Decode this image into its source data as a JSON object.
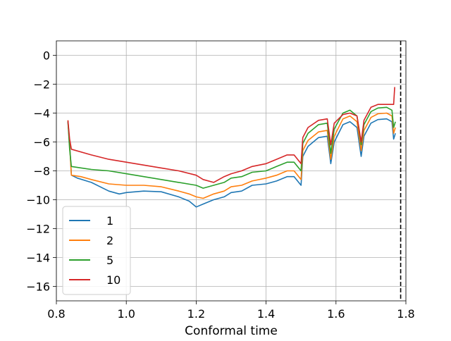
{
  "chart_data": {
    "type": "line",
    "title": "",
    "xlabel": "Conformal time",
    "ylabel": "",
    "xlim": [
      0.8,
      1.8
    ],
    "ylim": [
      -17,
      1
    ],
    "x_ticks": [
      0.8,
      1.0,
      1.2,
      1.4,
      1.6,
      1.8
    ],
    "x_tick_labels": [
      "0.8",
      "1.0",
      "1.2",
      "1.4",
      "1.6",
      "1.8"
    ],
    "y_ticks": [
      0,
      -2,
      -4,
      -6,
      -8,
      -10,
      -12,
      -14,
      -16
    ],
    "y_tick_labels": [
      "0",
      "−2",
      "−4",
      "−6",
      "−8",
      "−10",
      "−12",
      "−14",
      "−16"
    ],
    "grid": true,
    "legend_position": "lower-left",
    "vertical_line": {
      "x": 1.785,
      "style": "dashed",
      "color": "#000000"
    },
    "series": [
      {
        "name": "1",
        "color": "#1f77b4",
        "points": [
          [
            0.833,
            -4.6
          ],
          [
            0.838,
            -6.0
          ],
          [
            0.843,
            -8.3
          ],
          [
            0.86,
            -8.5
          ],
          [
            0.9,
            -8.8
          ],
          [
            0.95,
            -9.4
          ],
          [
            0.98,
            -9.6
          ],
          [
            1.0,
            -9.5
          ],
          [
            1.05,
            -9.4
          ],
          [
            1.1,
            -9.45
          ],
          [
            1.15,
            -9.8
          ],
          [
            1.18,
            -10.1
          ],
          [
            1.2,
            -10.5
          ],
          [
            1.22,
            -10.3
          ],
          [
            1.25,
            -10.0
          ],
          [
            1.28,
            -9.8
          ],
          [
            1.3,
            -9.5
          ],
          [
            1.33,
            -9.4
          ],
          [
            1.36,
            -9.0
          ],
          [
            1.4,
            -8.9
          ],
          [
            1.43,
            -8.7
          ],
          [
            1.46,
            -8.4
          ],
          [
            1.48,
            -8.4
          ],
          [
            1.5,
            -9.0
          ],
          [
            1.505,
            -7.0
          ],
          [
            1.52,
            -6.3
          ],
          [
            1.55,
            -5.7
          ],
          [
            1.575,
            -5.6
          ],
          [
            1.585,
            -7.5
          ],
          [
            1.595,
            -6.0
          ],
          [
            1.62,
            -4.8
          ],
          [
            1.64,
            -4.6
          ],
          [
            1.66,
            -5.0
          ],
          [
            1.672,
            -7.0
          ],
          [
            1.68,
            -5.6
          ],
          [
            1.7,
            -4.7
          ],
          [
            1.72,
            -4.45
          ],
          [
            1.745,
            -4.4
          ],
          [
            1.76,
            -4.6
          ],
          [
            1.765,
            -5.8
          ],
          [
            1.77,
            -5.4
          ]
        ]
      },
      {
        "name": "2",
        "color": "#ff7f0e",
        "points": [
          [
            0.833,
            -4.5
          ],
          [
            0.838,
            -6.2
          ],
          [
            0.843,
            -8.3
          ],
          [
            0.87,
            -8.4
          ],
          [
            0.9,
            -8.6
          ],
          [
            0.95,
            -8.9
          ],
          [
            1.0,
            -9.0
          ],
          [
            1.05,
            -9.0
          ],
          [
            1.1,
            -9.1
          ],
          [
            1.15,
            -9.4
          ],
          [
            1.18,
            -9.6
          ],
          [
            1.2,
            -9.8
          ],
          [
            1.22,
            -9.9
          ],
          [
            1.25,
            -9.6
          ],
          [
            1.28,
            -9.4
          ],
          [
            1.3,
            -9.1
          ],
          [
            1.33,
            -9.0
          ],
          [
            1.36,
            -8.7
          ],
          [
            1.4,
            -8.5
          ],
          [
            1.43,
            -8.3
          ],
          [
            1.46,
            -8.0
          ],
          [
            1.48,
            -8.0
          ],
          [
            1.5,
            -8.6
          ],
          [
            1.505,
            -6.6
          ],
          [
            1.52,
            -5.9
          ],
          [
            1.55,
            -5.3
          ],
          [
            1.575,
            -5.2
          ],
          [
            1.585,
            -7.2
          ],
          [
            1.595,
            -5.6
          ],
          [
            1.62,
            -4.4
          ],
          [
            1.64,
            -4.2
          ],
          [
            1.66,
            -4.6
          ],
          [
            1.672,
            -6.6
          ],
          [
            1.68,
            -5.2
          ],
          [
            1.7,
            -4.3
          ],
          [
            1.72,
            -4.05
          ],
          [
            1.745,
            -4.0
          ],
          [
            1.76,
            -4.2
          ],
          [
            1.765,
            -5.4
          ],
          [
            1.77,
            -5.0
          ]
        ]
      },
      {
        "name": "5",
        "color": "#2ca02c",
        "points": [
          [
            0.833,
            -4.6
          ],
          [
            0.838,
            -6.5
          ],
          [
            0.843,
            -7.7
          ],
          [
            0.9,
            -7.9
          ],
          [
            0.95,
            -8.0
          ],
          [
            1.0,
            -8.2
          ],
          [
            1.05,
            -8.4
          ],
          [
            1.1,
            -8.6
          ],
          [
            1.15,
            -8.8
          ],
          [
            1.2,
            -9.0
          ],
          [
            1.22,
            -9.2
          ],
          [
            1.25,
            -9.0
          ],
          [
            1.28,
            -8.8
          ],
          [
            1.3,
            -8.5
          ],
          [
            1.33,
            -8.4
          ],
          [
            1.36,
            -8.1
          ],
          [
            1.4,
            -8.0
          ],
          [
            1.43,
            -7.7
          ],
          [
            1.46,
            -7.4
          ],
          [
            1.48,
            -7.4
          ],
          [
            1.5,
            -8.0
          ],
          [
            1.505,
            -6.1
          ],
          [
            1.52,
            -5.4
          ],
          [
            1.55,
            -4.8
          ],
          [
            1.575,
            -4.7
          ],
          [
            1.585,
            -6.8
          ],
          [
            1.595,
            -5.1
          ],
          [
            1.62,
            -4.0
          ],
          [
            1.64,
            -3.8
          ],
          [
            1.66,
            -4.2
          ],
          [
            1.672,
            -6.2
          ],
          [
            1.68,
            -4.8
          ],
          [
            1.7,
            -3.9
          ],
          [
            1.72,
            -3.65
          ],
          [
            1.745,
            -3.6
          ],
          [
            1.76,
            -3.8
          ],
          [
            1.765,
            -5.0
          ],
          [
            1.77,
            -4.6
          ]
        ]
      },
      {
        "name": "10",
        "color": "#d62728",
        "points": [
          [
            0.833,
            -4.5
          ],
          [
            0.838,
            -5.8
          ],
          [
            0.843,
            -6.5
          ],
          [
            0.9,
            -6.9
          ],
          [
            0.95,
            -7.2
          ],
          [
            1.0,
            -7.4
          ],
          [
            1.05,
            -7.6
          ],
          [
            1.1,
            -7.8
          ],
          [
            1.15,
            -8.0
          ],
          [
            1.2,
            -8.3
          ],
          [
            1.22,
            -8.6
          ],
          [
            1.25,
            -8.8
          ],
          [
            1.28,
            -8.4
          ],
          [
            1.3,
            -8.2
          ],
          [
            1.33,
            -8.0
          ],
          [
            1.36,
            -7.7
          ],
          [
            1.4,
            -7.5
          ],
          [
            1.43,
            -7.2
          ],
          [
            1.46,
            -6.9
          ],
          [
            1.48,
            -6.9
          ],
          [
            1.5,
            -7.5
          ],
          [
            1.505,
            -5.7
          ],
          [
            1.52,
            -5.0
          ],
          [
            1.55,
            -4.5
          ],
          [
            1.575,
            -4.4
          ],
          [
            1.585,
            -6.2
          ],
          [
            1.595,
            -4.7
          ],
          [
            1.62,
            -4.1
          ],
          [
            1.64,
            -4.0
          ],
          [
            1.66,
            -4.2
          ],
          [
            1.672,
            -6.0
          ],
          [
            1.68,
            -4.5
          ],
          [
            1.7,
            -3.6
          ],
          [
            1.72,
            -3.4
          ],
          [
            1.745,
            -3.4
          ],
          [
            1.765,
            -3.4
          ],
          [
            1.768,
            -2.2
          ]
        ]
      }
    ]
  }
}
